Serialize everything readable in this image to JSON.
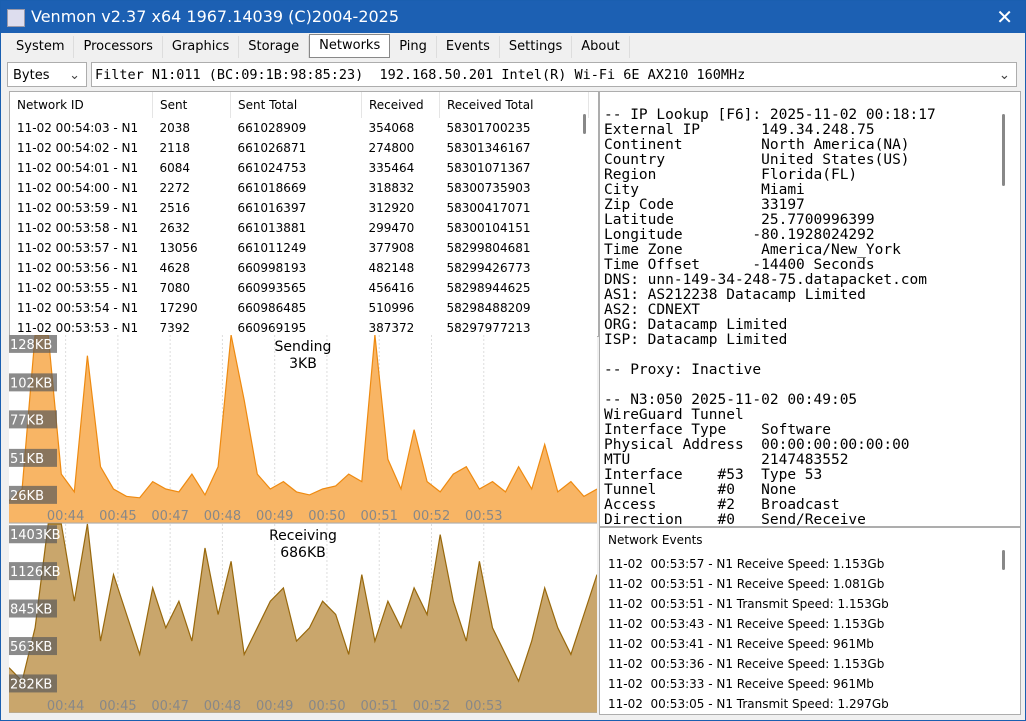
{
  "window": {
    "title": "Venmon v2.37 x64 1967.14039 (C)2004-2025"
  },
  "tabs": [
    "System",
    "Processors",
    "Graphics",
    "Storage",
    "Networks",
    "Ping",
    "Events",
    "Settings",
    "About"
  ],
  "active_tab": 4,
  "units_select": "Bytes",
  "filter": "Filter N1:011 (BC:09:1B:98:85:23)  192.168.50.201 Intel(R) Wi-Fi 6E AX210 160MHz",
  "table": {
    "columns": [
      "Network ID",
      "Sent",
      "Sent Total",
      "Received",
      "Received Total"
    ],
    "rows": [
      [
        "11-02 00:54:03 - N1",
        2038,
        661028909,
        354068,
        58301700235
      ],
      [
        "11-02 00:54:02 - N1",
        2118,
        661026871,
        274800,
        58301346167
      ],
      [
        "11-02 00:54:01 - N1",
        6084,
        661024753,
        335464,
        58301071367
      ],
      [
        "11-02 00:54:00 - N1",
        2272,
        661018669,
        318832,
        58300735903
      ],
      [
        "11-02 00:53:59 - N1",
        2516,
        661016397,
        312920,
        58300417071
      ],
      [
        "11-02 00:53:58 - N1",
        2632,
        661013881,
        299470,
        58300104151
      ],
      [
        "11-02 00:53:57 - N1",
        13056,
        661011249,
        377908,
        58299804681
      ],
      [
        "11-02 00:53:56 - N1",
        4628,
        660998193,
        482148,
        58299426773
      ],
      [
        "11-02 00:53:55 - N1",
        7080,
        660993565,
        456416,
        58298944625
      ],
      [
        "11-02 00:53:54 - N1",
        17290,
        660986485,
        510996,
        58298488209
      ],
      [
        "11-02 00:53:53 - N1",
        7392,
        660969195,
        387372,
        58297977213
      ]
    ]
  },
  "info_panel": {
    "ip_lookup": [
      "-- IP Lookup [F6]: 2025-11-02 00:18:17",
      "External IP       149.34.248.75",
      "Continent         North America(NA)",
      "Country           United States(US)",
      "Region            Florida(FL)",
      "City              Miami",
      "Zip Code          33197",
      "Latitude          25.7700996399",
      "Longitude        -80.1928024292",
      "Time Zone         America/New_York",
      "Time Offset      -14400 Seconds",
      "DNS: unn-149-34-248-75.datapacket.com",
      "AS1: AS212238 Datacamp Limited",
      "AS2: CDNEXT",
      "ORG: Datacamp Limited",
      "ISP: Datacamp Limited"
    ],
    "proxy": "-- Proxy: Inactive",
    "interface": [
      "-- N3:050 2025-11-02 00:49:05",
      "WireGuard Tunnel",
      "Interface Type    Software",
      "Physical Address  00:00:00:00:00:00",
      "MTU               2147483552",
      "Interface    #53  Type 53",
      "Tunnel       #0   None",
      "Access       #2   Broadcast",
      "Direction    #0   Send/Receive"
    ]
  },
  "events": {
    "title": "Network Events",
    "items": [
      "11-02  00:53:57 - N1 Receive Speed: 1.153Gb",
      "11-02  00:53:51 - N1 Receive Speed: 1.081Gb",
      "11-02  00:53:51 - N1 Transmit Speed: 1.153Gb",
      "11-02  00:53:43 - N1 Receive Speed: 1.153Gb",
      "11-02  00:53:41 - N1 Receive Speed: 961Mb",
      "11-02  00:53:36 - N1 Receive Speed: 1.153Gb",
      "11-02  00:53:33 - N1 Receive Speed: 961Mb",
      "11-02  00:53:05 - N1 Transmit Speed: 1.297Gb"
    ]
  },
  "chart_data": [
    {
      "type": "area",
      "title": "Sending",
      "subtitle": "3KB",
      "color": "#ee8a10",
      "fill_color": "#f8b565",
      "x": [
        0,
        15,
        30,
        45,
        60,
        75,
        90,
        105,
        120,
        135,
        150,
        165,
        180,
        195,
        210,
        225,
        240,
        255,
        270,
        285,
        300,
        315,
        330,
        345,
        360,
        375,
        390,
        405,
        420,
        435,
        450,
        465,
        480,
        495,
        510,
        525,
        540,
        555,
        570,
        585,
        600,
        615,
        630,
        645,
        660,
        675
      ],
      "values": [
        22,
        30,
        134,
        134,
        40,
        28,
        120,
        45,
        30,
        25,
        24,
        35,
        30,
        28,
        40,
        26,
        45,
        134,
        90,
        40,
        30,
        35,
        28,
        26,
        30,
        32,
        40,
        35,
        134,
        50,
        30,
        70,
        35,
        28,
        40,
        45,
        30,
        35,
        28,
        45,
        30,
        60,
        28,
        35,
        25,
        30
      ],
      "xlim": [
        0,
        675
      ],
      "ylim": [
        7,
        134
      ],
      "xticks": [
        {
          "value": 65,
          "label": "00:44"
        },
        {
          "value": 125,
          "label": "00:45"
        },
        {
          "value": 185,
          "label": "00:47"
        },
        {
          "value": 245,
          "label": "00:48"
        },
        {
          "value": 305,
          "label": "00:49"
        },
        {
          "value": 365,
          "label": "00:50"
        },
        {
          "value": 425,
          "label": "00:51"
        },
        {
          "value": 485,
          "label": "00:52"
        },
        {
          "value": 545,
          "label": "00:53"
        }
      ],
      "yticks": [
        {
          "value": 128,
          "label": "128KB"
        },
        {
          "value": 102,
          "label": "102KB"
        },
        {
          "value": 77,
          "label": "77KB"
        },
        {
          "value": 51,
          "label": "51KB"
        },
        {
          "value": 26,
          "label": "26KB"
        }
      ],
      "grid": true
    },
    {
      "type": "area",
      "title": "Receiving",
      "subtitle": "686KB",
      "color": "#98680c",
      "fill_color": "#c9a66c",
      "x": [
        0,
        15,
        30,
        45,
        60,
        75,
        90,
        105,
        120,
        135,
        150,
        165,
        180,
        195,
        210,
        225,
        240,
        255,
        270,
        285,
        300,
        315,
        330,
        345,
        360,
        375,
        390,
        405,
        420,
        435,
        450,
        465,
        480,
        495,
        510,
        525,
        540,
        555,
        570,
        585,
        600,
        615,
        630,
        645,
        660,
        675
      ],
      "values": [
        400,
        300,
        700,
        1480,
        1480,
        900,
        1480,
        600,
        1100,
        800,
        500,
        1000,
        700,
        900,
        600,
        1300,
        800,
        1200,
        500,
        700,
        900,
        1000,
        600,
        700,
        900,
        800,
        500,
        1100,
        600,
        900,
        700,
        1000,
        800,
        1400,
        900,
        600,
        1200,
        700,
        500,
        300,
        600,
        1000,
        700,
        500,
        800,
        1100
      ],
      "xlim": [
        0,
        675
      ],
      "ylim": [
        60,
        1480
      ],
      "xticks": [
        {
          "value": 65,
          "label": "00:44"
        },
        {
          "value": 125,
          "label": "00:45"
        },
        {
          "value": 185,
          "label": "00:47"
        },
        {
          "value": 245,
          "label": "00:48"
        },
        {
          "value": 305,
          "label": "00:49"
        },
        {
          "value": 365,
          "label": "00:50"
        },
        {
          "value": 425,
          "label": "00:51"
        },
        {
          "value": 485,
          "label": "00:52"
        },
        {
          "value": 545,
          "label": "00:53"
        }
      ],
      "yticks": [
        {
          "value": 1403,
          "label": "1403KB"
        },
        {
          "value": 1126,
          "label": "1126KB"
        },
        {
          "value": 845,
          "label": "845KB"
        },
        {
          "value": 563,
          "label": "563KB"
        },
        {
          "value": 282,
          "label": "282KB"
        }
      ],
      "grid": true
    }
  ]
}
